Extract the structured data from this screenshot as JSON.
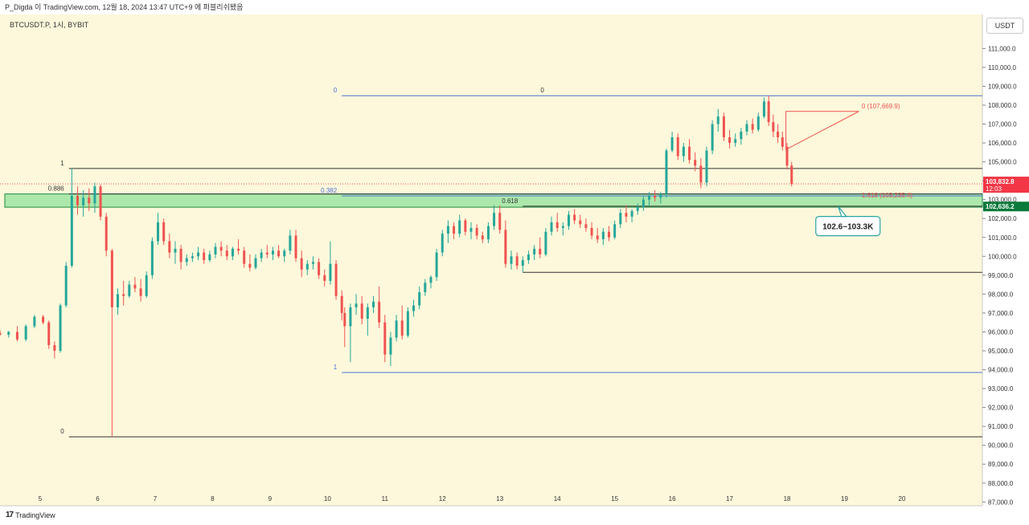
{
  "header": {
    "publish_info": "P_Digda 이 TradingView.com, 12월 18, 2024 13:47 UTC+9 에 퍼블리쉬됐음",
    "symbol": "BTCUSDT.P, 1시, BYBIT",
    "currency": "USDT",
    "brand": "TradingView",
    "logo_glyph": "17"
  },
  "colors": {
    "background": "#fdf8db",
    "up": "#26a69a",
    "down": "#ef5350",
    "zone_fill": "#9ee5a2",
    "zone_line": "#1e8a3e",
    "fib_blue": "#4a6fd8",
    "price_tag": "#f23645",
    "zone_tag": "#0b7a3b",
    "callout_border": "#2aa5a5"
  },
  "chart_data": {
    "type": "candlestick",
    "x_label_positions_note": "days of December 2024",
    "x_ticks": [
      "5",
      "6",
      "7",
      "8",
      "9",
      "10",
      "11",
      "12",
      "13",
      "14",
      "15",
      "16",
      "17",
      "18",
      "19",
      "20"
    ],
    "y_ticks": [
      "111,000.0",
      "110,000.0",
      "109,000.0",
      "108,000.0",
      "107,000.0",
      "106,000.0",
      "105,000.0",
      "104,000.0",
      "103,000.0",
      "102,000.0",
      "101,000.0",
      "100,000.0",
      "99,000.0",
      "98,000.0",
      "97,000.0",
      "96,000.0",
      "95,000.0",
      "94,000.0",
      "93,000.0",
      "92,000.0",
      "91,000.0",
      "90,000.0",
      "89,000.0",
      "88,000.0",
      "87,000.0"
    ],
    "ylim": [
      86800,
      112800
    ],
    "xlim": [
      4.3,
      21.4
    ],
    "current_price": "103,832.8",
    "countdown": "12:03",
    "zone_price_tag": "102,636.2",
    "callout": "102.6~103.3K",
    "zone": [
      102600,
      103300
    ],
    "fib_levels": [
      {
        "label": "1",
        "price": 104650,
        "x_start": 5.5,
        "x_end": 21.4,
        "color": "#333333"
      },
      {
        "label": "0.886",
        "price": 103300,
        "x_start": 5.5,
        "x_end": 21.4,
        "color": "#333333"
      },
      {
        "label": "0",
        "price": 90450,
        "x_start": 5.5,
        "x_end": 21.4,
        "color": "#333333"
      },
      {
        "label": "0",
        "price": 108500,
        "x_start": 10.25,
        "x_end": 21.4,
        "color": "#4a6fd8"
      },
      {
        "label": "0.382",
        "price": 103200,
        "x_start": 10.25,
        "x_end": 21.4,
        "color": "#4a6fd8"
      },
      {
        "label": "1",
        "price": 93850,
        "x_start": 10.25,
        "x_end": 21.4,
        "color": "#4a6fd8"
      },
      {
        "label": "0.618",
        "price": 102650,
        "x_start": 13.4,
        "x_end": 21.4,
        "color": "#333333"
      },
      {
        "label": "",
        "price": 99150,
        "x_start": 13.4,
        "x_end": 21.4,
        "color": "#333333"
      }
    ],
    "label_zero_mid": "0",
    "triangle_labels": {
      "top": "0 (107,669.9)",
      "bottom": "1.618 (103,235.4)"
    },
    "candles": [
      [
        4.3,
        95950,
        96100,
        95800,
        95850
      ],
      [
        4.45,
        95850,
        96050,
        95700,
        96000
      ],
      [
        4.6,
        96000,
        96300,
        95500,
        95600
      ],
      [
        4.75,
        95600,
        96400,
        95500,
        96300
      ],
      [
        4.9,
        96300,
        96900,
        96200,
        96800
      ],
      [
        5.05,
        96800,
        96900,
        96400,
        96500
      ],
      [
        5.15,
        96500,
        96600,
        95100,
        95300
      ],
      [
        5.25,
        95300,
        95500,
        94600,
        95000
      ],
      [
        5.35,
        95000,
        97500,
        94900,
        97400
      ],
      [
        5.45,
        97400,
        99700,
        97300,
        99500
      ],
      [
        5.55,
        99500,
        104650,
        99400,
        103200
      ],
      [
        5.65,
        103200,
        103700,
        102200,
        102700
      ],
      [
        5.75,
        102700,
        103500,
        102100,
        103100
      ],
      [
        5.85,
        103100,
        103600,
        102400,
        102800
      ],
      [
        5.95,
        102800,
        103900,
        102300,
        103700
      ],
      [
        6.05,
        103700,
        103800,
        101900,
        102100
      ],
      [
        6.15,
        102100,
        102300,
        100000,
        100300
      ],
      [
        6.25,
        100300,
        100400,
        90450,
        97300
      ],
      [
        6.35,
        97300,
        98300,
        96900,
        98000
      ],
      [
        6.45,
        98000,
        98700,
        97400,
        97900
      ],
      [
        6.55,
        97900,
        98700,
        97800,
        98500
      ],
      [
        6.65,
        98500,
        98900,
        98100,
        98300
      ],
      [
        6.75,
        98300,
        98800,
        97600,
        97900
      ],
      [
        6.85,
        97900,
        99200,
        97800,
        99000
      ],
      [
        6.95,
        99000,
        101000,
        98800,
        100800
      ],
      [
        7.05,
        100800,
        102300,
        100600,
        101800
      ],
      [
        7.15,
        101800,
        102000,
        100600,
        100800
      ],
      [
        7.25,
        100800,
        101200,
        99900,
        100200
      ],
      [
        7.35,
        100200,
        100800,
        99600,
        100400
      ],
      [
        7.45,
        100400,
        100600,
        99300,
        99700
      ],
      [
        7.55,
        99700,
        100100,
        99500,
        99900
      ],
      [
        7.65,
        99900,
        100200,
        99700,
        100000
      ],
      [
        7.75,
        100000,
        100500,
        99800,
        100200
      ],
      [
        7.85,
        100200,
        100400,
        99600,
        99800
      ],
      [
        7.95,
        99800,
        100300,
        99700,
        100100
      ],
      [
        8.05,
        100100,
        100700,
        99900,
        100500
      ],
      [
        8.15,
        100500,
        100800,
        100000,
        100300
      ],
      [
        8.25,
        100300,
        100600,
        99800,
        100000
      ],
      [
        8.35,
        100000,
        100500,
        99800,
        100400
      ],
      [
        8.45,
        100400,
        100900,
        100100,
        100300
      ],
      [
        8.55,
        100300,
        100500,
        99400,
        99600
      ],
      [
        8.65,
        99600,
        100100,
        99200,
        99400
      ],
      [
        8.75,
        99400,
        100100,
        99300,
        99900
      ],
      [
        8.85,
        99900,
        100400,
        99700,
        100200
      ],
      [
        8.95,
        100200,
        100600,
        99900,
        100100
      ],
      [
        9.05,
        100100,
        100500,
        99800,
        100300
      ],
      [
        9.15,
        100300,
        100600,
        99900,
        100000
      ],
      [
        9.25,
        100000,
        100400,
        99700,
        100300
      ],
      [
        9.35,
        100300,
        101400,
        100100,
        101100
      ],
      [
        9.45,
        101100,
        101400,
        99700,
        99900
      ],
      [
        9.55,
        99900,
        100300,
        98900,
        99300
      ],
      [
        9.65,
        99300,
        99800,
        99000,
        99600
      ],
      [
        9.75,
        99600,
        100000,
        99300,
        99700
      ],
      [
        9.85,
        99700,
        99900,
        98800,
        99000
      ],
      [
        9.95,
        99000,
        99300,
        98400,
        98700
      ],
      [
        10.05,
        98700,
        100800,
        98500,
        99600
      ],
      [
        10.15,
        99600,
        99800,
        97700,
        97900
      ],
      [
        10.25,
        97900,
        98200,
        96600,
        97000
      ],
      [
        10.3,
        97000,
        97300,
        95200,
        96300
      ],
      [
        10.4,
        96300,
        97500,
        94400,
        97300
      ],
      [
        10.5,
        97300,
        98000,
        96900,
        97500
      ],
      [
        10.6,
        97500,
        97900,
        96400,
        96700
      ],
      [
        10.7,
        96700,
        97500,
        95800,
        97300
      ],
      [
        10.8,
        97300,
        97900,
        97000,
        97600
      ],
      [
        10.9,
        97600,
        98400,
        96200,
        96500
      ],
      [
        11.0,
        96500,
        96900,
        94400,
        94800
      ],
      [
        11.1,
        94800,
        96000,
        94200,
        95700
      ],
      [
        11.2,
        95700,
        96900,
        95500,
        96600
      ],
      [
        11.3,
        96600,
        97400,
        95600,
        95800
      ],
      [
        11.4,
        95800,
        97300,
        95700,
        97100
      ],
      [
        11.5,
        97100,
        97700,
        96800,
        97400
      ],
      [
        11.6,
        97400,
        98400,
        97200,
        98100
      ],
      [
        11.7,
        98100,
        98800,
        97900,
        98600
      ],
      [
        11.8,
        98600,
        99000,
        98300,
        98900
      ],
      [
        11.9,
        98900,
        100400,
        98700,
        100200
      ],
      [
        12.0,
        100200,
        101400,
        100000,
        101200
      ],
      [
        12.1,
        101200,
        101900,
        100700,
        101600
      ],
      [
        12.2,
        101600,
        101800,
        100900,
        101200
      ],
      [
        12.3,
        101200,
        102200,
        101000,
        101900
      ],
      [
        12.4,
        101900,
        102000,
        101100,
        101300
      ],
      [
        12.5,
        101300,
        101800,
        100900,
        101500
      ],
      [
        12.6,
        101500,
        101700,
        100900,
        101100
      ],
      [
        12.7,
        101100,
        101300,
        100700,
        100900
      ],
      [
        12.8,
        100900,
        101800,
        100700,
        101600
      ],
      [
        12.9,
        101600,
        102700,
        101400,
        102300
      ],
      [
        13.0,
        102300,
        102700,
        101200,
        101400
      ],
      [
        13.1,
        101400,
        101900,
        99400,
        99600
      ],
      [
        13.2,
        99600,
        100300,
        99300,
        100000
      ],
      [
        13.3,
        100000,
        100200,
        99300,
        99500
      ],
      [
        13.4,
        99500,
        100000,
        99150,
        99800
      ],
      [
        13.5,
        99800,
        100300,
        99600,
        100100
      ],
      [
        13.6,
        100100,
        100600,
        99800,
        100400
      ],
      [
        13.7,
        100400,
        101000,
        99900,
        100100
      ],
      [
        13.8,
        100100,
        101500,
        100000,
        101300
      ],
      [
        13.9,
        101300,
        102100,
        101100,
        101800
      ],
      [
        14.0,
        101800,
        102300,
        101300,
        101500
      ],
      [
        14.1,
        101500,
        101800,
        101100,
        101600
      ],
      [
        14.2,
        101600,
        102400,
        101400,
        102200
      ],
      [
        14.3,
        102200,
        102500,
        101700,
        101900
      ],
      [
        14.4,
        101900,
        102200,
        101500,
        101700
      ],
      [
        14.5,
        101700,
        102000,
        101300,
        101500
      ],
      [
        14.6,
        101500,
        101800,
        100900,
        101100
      ],
      [
        14.7,
        101100,
        101500,
        100700,
        100900
      ],
      [
        14.8,
        100900,
        101500,
        100600,
        101300
      ],
      [
        14.9,
        101300,
        101600,
        100800,
        101000
      ],
      [
        15.0,
        101000,
        101900,
        100900,
        101700
      ],
      [
        15.1,
        101700,
        102500,
        101500,
        102300
      ],
      [
        15.2,
        102300,
        102700,
        101800,
        102100
      ],
      [
        15.3,
        102100,
        102500,
        101800,
        102400
      ],
      [
        15.4,
        102400,
        102800,
        102200,
        102600
      ],
      [
        15.5,
        102600,
        103200,
        102400,
        103000
      ],
      [
        15.6,
        103000,
        103400,
        102700,
        103200
      ],
      [
        15.7,
        103200,
        103500,
        102900,
        103100
      ],
      [
        15.8,
        103100,
        103400,
        102800,
        103300
      ],
      [
        15.9,
        103300,
        105700,
        103100,
        105600
      ],
      [
        16.0,
        105600,
        106600,
        105500,
        106300
      ],
      [
        16.1,
        106300,
        106500,
        105100,
        105300
      ],
      [
        16.2,
        105300,
        106000,
        105000,
        105800
      ],
      [
        16.3,
        105800,
        106200,
        104900,
        105100
      ],
      [
        16.4,
        105100,
        105500,
        104500,
        104800
      ],
      [
        16.5,
        104800,
        105200,
        103600,
        103900
      ],
      [
        16.6,
        103900,
        105800,
        103700,
        105600
      ],
      [
        16.7,
        105600,
        107200,
        105400,
        107000
      ],
      [
        16.8,
        107000,
        107800,
        106600,
        107400
      ],
      [
        16.9,
        107400,
        107600,
        106100,
        106300
      ],
      [
        17.0,
        106300,
        106700,
        105700,
        106000
      ],
      [
        17.1,
        106000,
        106500,
        105800,
        106200
      ],
      [
        17.2,
        106200,
        106800,
        105900,
        106600
      ],
      [
        17.3,
        106600,
        107200,
        106400,
        107000
      ],
      [
        17.4,
        107000,
        107300,
        106500,
        106700
      ],
      [
        17.5,
        106700,
        107600,
        106600,
        107400
      ],
      [
        17.6,
        107400,
        108400,
        107300,
        108200
      ],
      [
        17.68,
        108200,
        108500,
        106900,
        107100
      ],
      [
        17.76,
        107100,
        107500,
        106300,
        106600
      ],
      [
        17.84,
        106600,
        107000,
        106000,
        106300
      ],
      [
        17.92,
        106300,
        106600,
        105600,
        105800
      ],
      [
        18.0,
        105800,
        106000,
        104600,
        104800
      ],
      [
        18.08,
        104800,
        105000,
        103700,
        103832.8
      ]
    ]
  }
}
